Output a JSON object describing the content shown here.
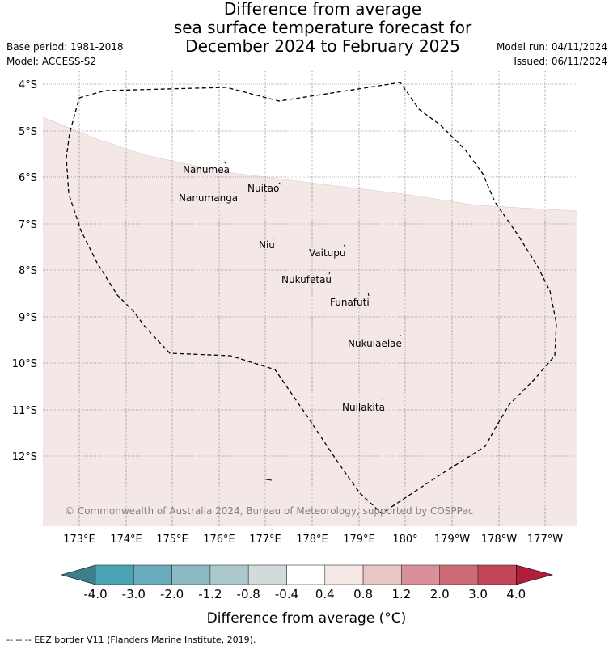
{
  "title": {
    "line1": "Difference from average",
    "line2": "sea surface temperature forecast for",
    "line3": "December 2024 to February 2025"
  },
  "meta": {
    "base_period": "Base period: 1981-2018",
    "model": "Model: ACCESS-S2",
    "model_run": "Model run: 04/11/2024",
    "issued": "Issued: 06/11/2024"
  },
  "map": {
    "lat_labels": [
      "4°S",
      "5°S",
      "6°S",
      "7°S",
      "8°S",
      "9°S",
      "10°S",
      "11°S",
      "12°S"
    ],
    "lon_labels": [
      "173°E",
      "174°E",
      "175°E",
      "176°E",
      "177°E",
      "178°E",
      "179°E",
      "180°",
      "179°W",
      "178°W",
      "177°W"
    ],
    "islands": [
      "Nanumea",
      "Nuitao",
      "Nanumanga",
      "Niu",
      "Vaitupu",
      "Nukufetau",
      "Funafuti",
      "Nukulaelae",
      "Nuilakita"
    ],
    "copyright": "© Commonwealth of Australia 2024, Bureau of Meteorology, supported by COSPPac",
    "anomaly_fill": "#f4e8e6"
  },
  "colorbar": {
    "ticks": [
      "-4.0",
      "-3.0",
      "-2.0",
      "-1.2",
      "-0.8",
      "-0.4",
      "0.4",
      "0.8",
      "1.2",
      "2.0",
      "3.0",
      "4.0"
    ],
    "colors": [
      "#49a3b3",
      "#68abba",
      "#8cbac4",
      "#abc9cc",
      "#d2dadb",
      "#ffffff",
      "#f5e8e6",
      "#e8c6c3",
      "#d9909a",
      "#cc6a76",
      "#c24655"
    ],
    "under_color": "#3a7f89",
    "over_color": "#b11d3b",
    "label": "Difference from average (°C)"
  },
  "footer": "--  --  -- EEZ border V11 (Flanders Marine Institute, 2019)."
}
